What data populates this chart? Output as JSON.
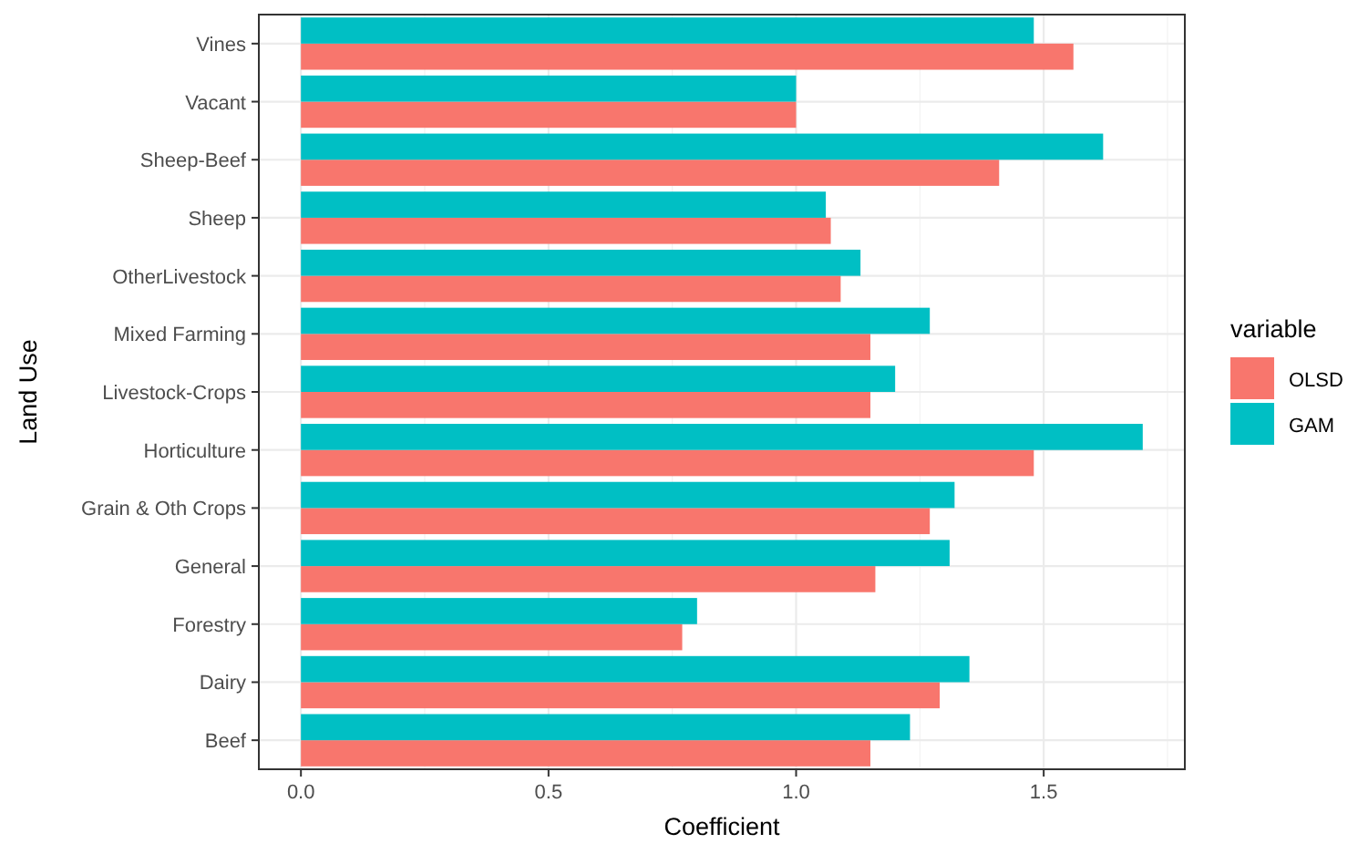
{
  "chart_data": {
    "type": "bar",
    "orientation": "horizontal",
    "xlabel": "Coefficient",
    "ylabel": "Land Use",
    "legend_title": "variable",
    "legend": "right",
    "grid": true,
    "categories": [
      "Vines",
      "Vacant",
      "Sheep-Beef",
      "Sheep",
      "OtherLivestock",
      "Mixed Farming",
      "Livestock-Crops",
      "Horticulture",
      "Grain & Oth Crops",
      "General",
      "Forestry",
      "Dairy",
      "Beef"
    ],
    "series": [
      {
        "name": "OLSD",
        "color": "#f8766d",
        "values": [
          1.56,
          1.0,
          1.41,
          1.07,
          1.09,
          1.15,
          1.15,
          1.48,
          1.27,
          1.16,
          0.77,
          1.29,
          1.15
        ]
      },
      {
        "name": "GAM",
        "color": "#00bfc4",
        "values": [
          1.48,
          1.0,
          1.62,
          1.06,
          1.13,
          1.27,
          1.2,
          1.7,
          1.32,
          1.31,
          0.8,
          1.35,
          1.23
        ]
      }
    ],
    "xlim": [
      -0.085,
      1.785
    ],
    "xticks": [
      {
        "value": 0,
        "label": "0.0"
      },
      {
        "value": 0.5,
        "label": "0.5"
      },
      {
        "value": 1,
        "label": "1.0"
      },
      {
        "value": 1.5,
        "label": "1.5"
      }
    ]
  }
}
